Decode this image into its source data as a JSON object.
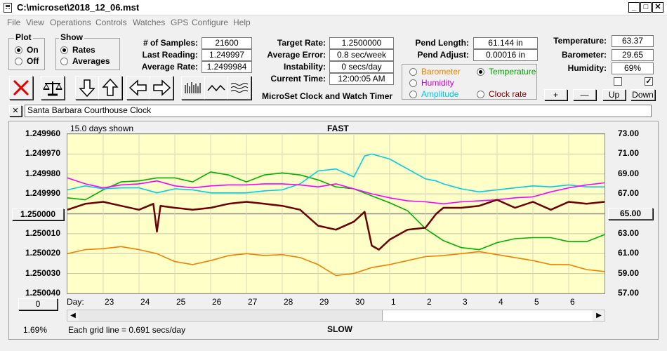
{
  "window": {
    "title": "C:\\microset\\2018_12_06.mst"
  },
  "menu": [
    "File",
    "View",
    "Operations",
    "Controls",
    "Watches",
    "GPS",
    "Configure",
    "Help"
  ],
  "plot_group": {
    "title": "Plot",
    "on": "On",
    "off": "Off",
    "selected": "On"
  },
  "show_group": {
    "title": "Show",
    "rates": "Rates",
    "averages": "Averages",
    "selected": "Rates"
  },
  "stats": {
    "samples_label": "# of Samples:",
    "samples": "21600",
    "last_label": "Last Reading:",
    "last": "1.249997",
    "avg_rate_label": "Average Rate:",
    "avg_rate": "1.2499984",
    "target_label": "Target Rate:",
    "target": "1.2500000",
    "avg_err_label": "Average Error:",
    "avg_err": "0.8 sec/week",
    "instab_label": "Instability:",
    "instab": "0 secs/day",
    "time_label": "Current Time:",
    "time": "12:00:05 AM",
    "app_name": "MicroSet Clock and Watch Timer",
    "pend_len_label": "Pend Length:",
    "pend_len": "61.144 in",
    "pend_adj_label": "Pend Adjust:",
    "pend_adj": "0.00016 in",
    "temp_label": "Temperature:",
    "temp": "63.37",
    "baro_label": "Barometer:",
    "baro": "29.65",
    "hum_label": "Humidity:",
    "hum": "69%"
  },
  "sensor_options": {
    "barometer": "Barometer",
    "temperature": "Temperature",
    "humidity": "Humidity",
    "amplitude": "Amplitude",
    "clock_rate": "Clock rate",
    "selected": "Temperature"
  },
  "scale_buttons": {
    "plus": "+",
    "minus": "—",
    "up": "Up",
    "down": "Down"
  },
  "clock_name": "Santa Barbara Courthouse Clock",
  "close_x": "✕",
  "chart_data": {
    "type": "line",
    "top_label": "FAST",
    "bottom_label": "SLOW",
    "days_shown": "15.0 days shown",
    "grid_note": "Each grid line = 0.691 secs/day",
    "corner_percent": "1.69%",
    "left_button": "0",
    "center_left_value": "1.250000",
    "center_right_value": "65.00",
    "day_label": "Day:",
    "x_ticks": [
      "23",
      "24",
      "25",
      "26",
      "27",
      "28",
      "29",
      "30",
      "1",
      "2",
      "3",
      "4",
      "5",
      "6"
    ],
    "y_left_ticks": [
      "1.249960",
      "1.249970",
      "1.249980",
      "1.249990",
      "1.250000",
      "1.250010",
      "1.250020",
      "1.250030",
      "1.250040"
    ],
    "y_right_ticks": [
      "73.00",
      "71.00",
      "69.00",
      "67.00",
      "65.00",
      "63.00",
      "61.00",
      "59.00",
      "57.00"
    ],
    "ylim_left": [
      1.25004,
      1.24996
    ],
    "ylim_right": [
      57,
      73
    ],
    "grid": true,
    "series": [
      {
        "color": "#6b0000",
        "axis": "left",
        "x": [
          22.0,
          22.5,
          23.0,
          23.5,
          24.0,
          24.4,
          24.5,
          24.6,
          25.0,
          25.5,
          26.0,
          26.5,
          27.0,
          27.5,
          28.0,
          28.5,
          29.0,
          29.5,
          30.0,
          30.3,
          30.5,
          30.7,
          31.0,
          31.5,
          32.0,
          32.3,
          32.5,
          33.0,
          33.5,
          34.0,
          34.5,
          35.0,
          35.5,
          36.0,
          36.5,
          37.0,
          37.5,
          37.8
        ],
        "y": [
          1.249998,
          1.249995,
          1.249994,
          1.249996,
          1.249998,
          1.249995,
          1.250009,
          1.249996,
          1.249997,
          1.249998,
          1.249997,
          1.249995,
          1.249994,
          1.249995,
          1.249996,
          1.249998,
          1.250006,
          1.250008,
          1.250004,
          1.249999,
          1.250016,
          1.250018,
          1.250013,
          1.250008,
          1.250007,
          1.25,
          1.249997,
          1.249997,
          1.249996,
          1.249993,
          1.249997,
          1.249994,
          1.249998,
          1.249994,
          1.249995,
          1.249994,
          1.249996,
          1.249997
        ]
      },
      {
        "color": "#ff00ff",
        "axis": "right",
        "x": [
          22.0,
          22.5,
          23.0,
          23.5,
          24.0,
          24.5,
          25.0,
          25.5,
          26.0,
          26.5,
          27.0,
          27.5,
          28.0,
          28.5,
          29.0,
          29.5,
          30.0,
          30.5,
          31.0,
          31.5,
          32.0,
          32.5,
          33.0,
          33.5,
          34.0,
          34.5,
          35.0,
          35.5,
          36.0,
          36.5,
          37.0,
          37.5,
          37.8
        ],
        "y": [
          68.6,
          68.0,
          67.6,
          67.9,
          68.0,
          68.3,
          67.8,
          67.6,
          67.8,
          67.9,
          67.9,
          68.0,
          68.0,
          67.9,
          67.7,
          68.0,
          67.5,
          67.0,
          66.6,
          66.3,
          66.2,
          66.0,
          66.2,
          66.3,
          66.4,
          66.6,
          66.7,
          67.2,
          67.6,
          67.9,
          68.1,
          68.2,
          68.2
        ]
      },
      {
        "color": "#00cfe0",
        "axis": "right",
        "x": [
          22.0,
          22.5,
          23.0,
          23.5,
          24.0,
          24.5,
          25.0,
          25.5,
          26.0,
          26.5,
          27.0,
          27.5,
          28.0,
          28.5,
          29.0,
          29.5,
          30.0,
          30.3,
          30.5,
          31.0,
          31.5,
          32.0,
          32.3,
          32.5,
          33.0,
          33.5,
          34.0,
          34.5,
          35.0,
          35.5,
          36.0,
          36.5,
          37.0,
          37.5,
          37.8
        ],
        "y": [
          67.4,
          67.8,
          67.5,
          67.6,
          67.6,
          67.1,
          67.5,
          67.4,
          67.1,
          67.1,
          67.1,
          67.3,
          67.4,
          68.0,
          69.3,
          69.5,
          68.7,
          70.8,
          71.0,
          70.5,
          69.5,
          68.5,
          68.3,
          68.0,
          67.5,
          67.2,
          67.4,
          67.6,
          67.8,
          67.7,
          67.9,
          67.7,
          67.7,
          67.9,
          68.1
        ]
      },
      {
        "color": "#00b000",
        "axis": "right",
        "x": [
          22.0,
          22.5,
          23.0,
          23.5,
          24.0,
          24.5,
          25.0,
          25.5,
          26.0,
          26.5,
          27.0,
          27.5,
          28.0,
          28.5,
          29.0,
          29.5,
          30.0,
          30.5,
          31.0,
          31.5,
          32.0,
          32.5,
          33.0,
          33.5,
          34.0,
          34.5,
          35.0,
          35.5,
          36.0,
          36.5,
          37.0,
          37.5,
          37.8
        ],
        "y": [
          66.6,
          66.4,
          67.4,
          68.2,
          68.3,
          68.6,
          68.6,
          68.2,
          69.2,
          68.9,
          68.2,
          68.9,
          69.1,
          68.9,
          68.4,
          67.7,
          67.5,
          66.8,
          66.1,
          65.3,
          63.5,
          62.3,
          61.6,
          61.4,
          62.1,
          62.5,
          62.6,
          62.6,
          62.2,
          62.2,
          62.9,
          63.0,
          63.7
        ]
      },
      {
        "color": "#f08000",
        "axis": "right",
        "x": [
          22.0,
          22.5,
          23.0,
          23.5,
          24.0,
          24.5,
          25.0,
          25.5,
          26.0,
          26.5,
          27.0,
          27.5,
          28.0,
          28.5,
          29.0,
          29.5,
          30.0,
          30.5,
          31.0,
          31.5,
          32.0,
          32.5,
          33.0,
          33.5,
          34.0,
          34.5,
          35.0,
          35.5,
          36.0,
          36.5,
          37.0,
          37.5,
          37.8
        ],
        "y": [
          61.0,
          61.4,
          61.5,
          61.7,
          61.4,
          61.0,
          60.2,
          59.9,
          60.3,
          60.8,
          61.0,
          60.8,
          60.9,
          60.6,
          59.9,
          58.8,
          59.0,
          59.6,
          59.9,
          60.3,
          60.7,
          60.8,
          61.0,
          61.2,
          60.9,
          60.6,
          60.3,
          59.9,
          59.9,
          59.4,
          59.2,
          59.4,
          59.9
        ]
      }
    ]
  }
}
